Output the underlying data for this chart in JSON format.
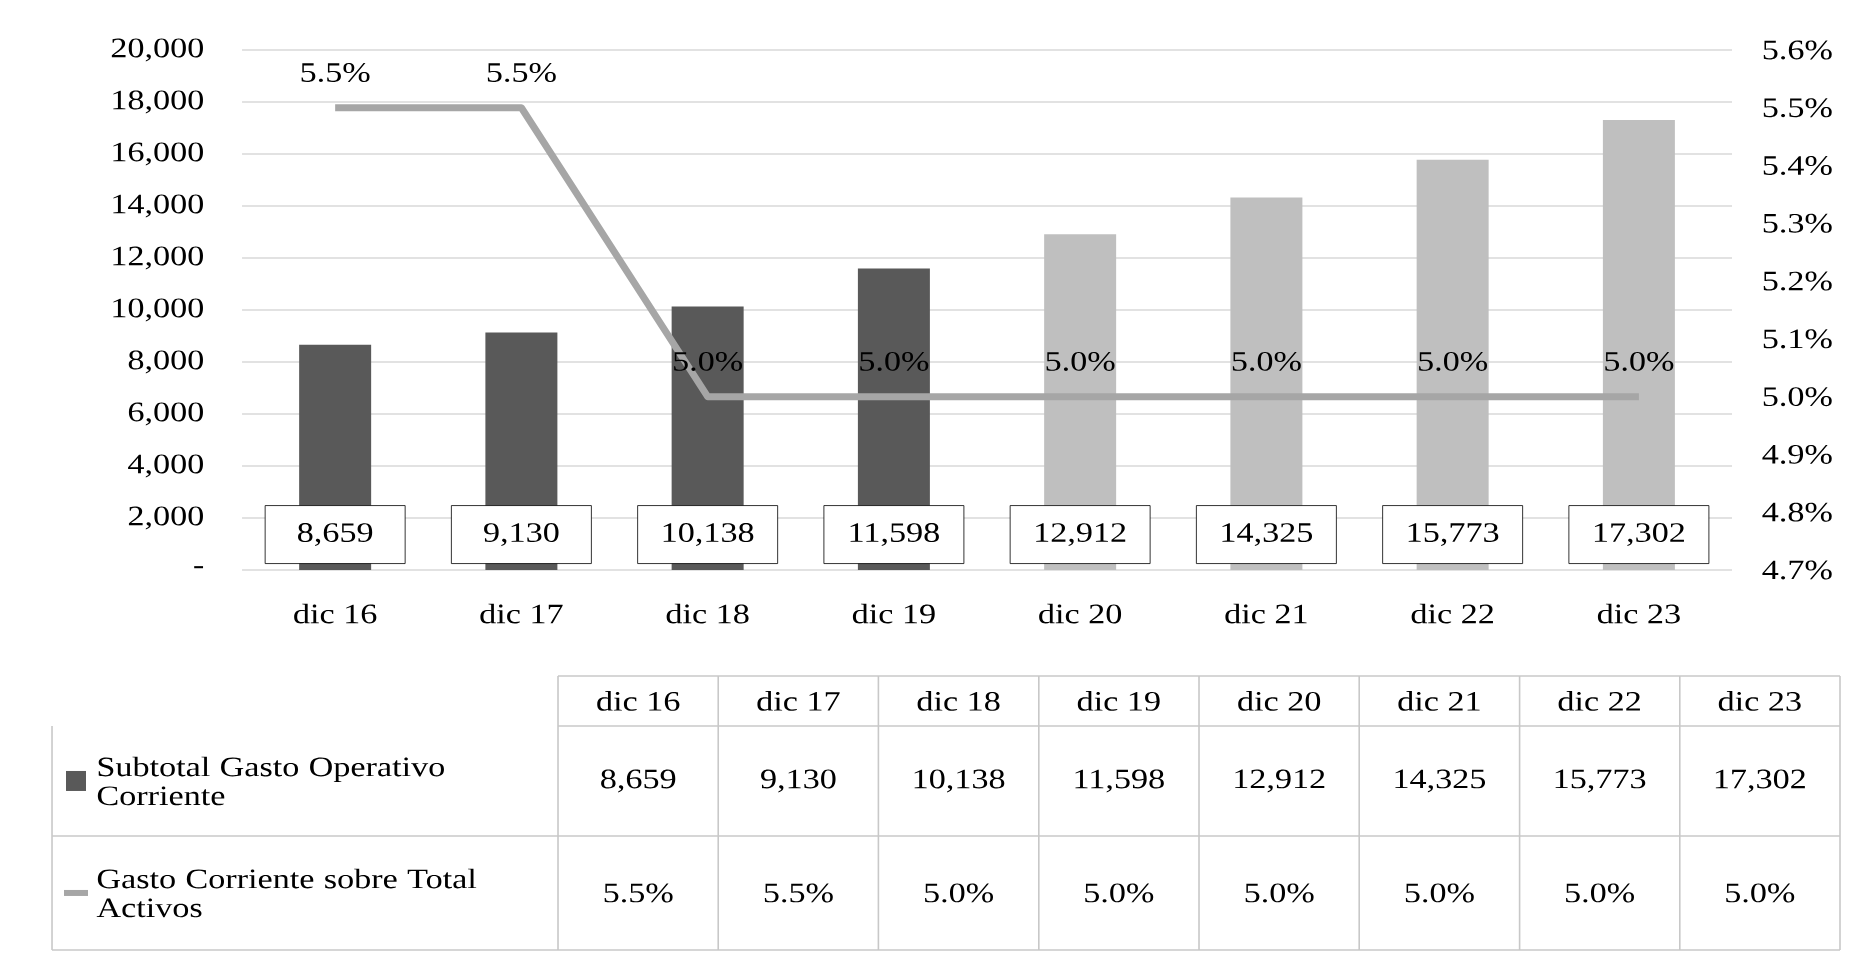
{
  "chart_data": {
    "type": "bar",
    "categories": [
      "dic 16",
      "dic 17",
      "dic 18",
      "dic 19",
      "dic 20",
      "dic 21",
      "dic 22",
      "dic 23"
    ],
    "series": [
      {
        "name": "Subtotal Gasto Operativo Corriente",
        "colors": [
          "#595959",
          "#595959",
          "#595959",
          "#595959",
          "#bfbfbf",
          "#bfbfbf",
          "#bfbfbf",
          "#bfbfbf"
        ],
        "values": [
          8659,
          9130,
          10138,
          11598,
          12912,
          14325,
          15773,
          17302
        ],
        "value_labels": [
          "8,659",
          "9,130",
          "10,138",
          "11,598",
          "12,912",
          "14,325",
          "15,773",
          "17,302"
        ]
      },
      {
        "name": "Gasto Corriente sobre Total Activos",
        "type": "line",
        "axis": "y2",
        "color": "#a6a6a6",
        "values": [
          5.5,
          5.5,
          5.0,
          5.0,
          5.0,
          5.0,
          5.0,
          5.0
        ],
        "value_labels": [
          "5.5%",
          "5.5%",
          "5.0%",
          "5.0%",
          "5.0%",
          "5.0%",
          "5.0%",
          "5.0%"
        ]
      }
    ],
    "ylim": [
      0,
      20000
    ],
    "yticks": [
      {
        "value": 0,
        "label": "-"
      },
      {
        "value": 2000,
        "label": "2,000"
      },
      {
        "value": 4000,
        "label": "4,000"
      },
      {
        "value": 6000,
        "label": "6,000"
      },
      {
        "value": 8000,
        "label": "8,000"
      },
      {
        "value": 10000,
        "label": "10,000"
      },
      {
        "value": 12000,
        "label": "12,000"
      },
      {
        "value": 14000,
        "label": "14,000"
      },
      {
        "value": 16000,
        "label": "16,000"
      },
      {
        "value": 18000,
        "label": "18,000"
      },
      {
        "value": 20000,
        "label": "20,000"
      }
    ],
    "y2lim": [
      4.7,
      5.6
    ],
    "y2ticks": [
      {
        "value": 4.7,
        "label": "4.7%"
      },
      {
        "value": 4.8,
        "label": "4.8%"
      },
      {
        "value": 4.9,
        "label": "4.9%"
      },
      {
        "value": 5.0,
        "label": "5.0%"
      },
      {
        "value": 5.1,
        "label": "5.1%"
      },
      {
        "value": 5.2,
        "label": "5.2%"
      },
      {
        "value": 5.3,
        "label": "5.3%"
      },
      {
        "value": 5.4,
        "label": "5.4%"
      },
      {
        "value": 5.5,
        "label": "5.5%"
      },
      {
        "value": 5.6,
        "label": "5.6%"
      }
    ],
    "grid": "y",
    "legend": "bottom"
  }
}
